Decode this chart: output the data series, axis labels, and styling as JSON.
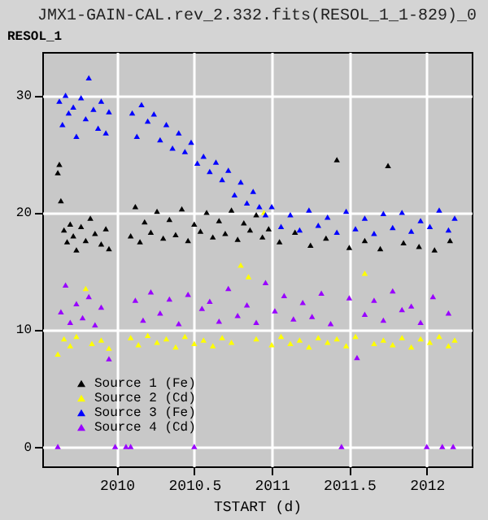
{
  "chart_data": {
    "type": "scatter",
    "title": "JMX1-GAIN-CAL.rev_2.332.fits(RESOL_1_1-829)_0",
    "xlabel": "TSTART (d)",
    "ylabel": "RESOL_1",
    "xlim": [
      2009.52,
      2012.29
    ],
    "xticks": [
      2010,
      2010.5,
      2011,
      2011.5,
      2012
    ],
    "ylim": [
      -1.7,
      33.7
    ],
    "yticks": [
      0,
      10,
      20,
      30
    ],
    "grid": true,
    "legend": "bottom left",
    "marker": "triangle",
    "series": [
      {
        "name": "Source 1 (Fe)",
        "color": "#000000",
        "x": [
          2009.62,
          2009.63,
          2009.64,
          2009.66,
          2009.68,
          2009.7,
          2009.72,
          2009.74,
          2009.77,
          2009.8,
          2009.83,
          2009.86,
          2009.9,
          2009.93,
          2009.95,
          2010.09,
          2010.12,
          2010.15,
          2010.18,
          2010.22,
          2010.26,
          2010.3,
          2010.34,
          2010.38,
          2010.42,
          2010.46,
          2010.5,
          2010.54,
          2010.58,
          2010.62,
          2010.66,
          2010.7,
          2010.74,
          2010.78,
          2010.82,
          2010.86,
          2010.9,
          2010.94,
          2010.98,
          2011.05,
          2011.15,
          2011.25,
          2011.35,
          2011.42,
          2011.5,
          2011.6,
          2011.7,
          2011.75,
          2011.85,
          2011.95,
          2012.05,
          2012.15
        ],
        "values": [
          23.4,
          24.1,
          21,
          18.5,
          17.5,
          19,
          18,
          16.8,
          18.8,
          17.6,
          19.5,
          18.2,
          17.3,
          18.6,
          16.9,
          18,
          20.5,
          17.5,
          19.2,
          18.3,
          20.1,
          17.8,
          19.4,
          18.1,
          20.3,
          17.6,
          19,
          18.4,
          20,
          17.9,
          19.3,
          18.2,
          20.2,
          17.7,
          19.1,
          18.5,
          19.8,
          17.9,
          18.6,
          17.5,
          18.3,
          17.2,
          17.8,
          24.5,
          17,
          17.6,
          16.9,
          24,
          17.4,
          17.1,
          16.8,
          17.6
        ]
      },
      {
        "name": "Source 2 (Cd)",
        "color": "#ffff00",
        "x": [
          2009.62,
          2009.66,
          2009.7,
          2009.74,
          2009.8,
          2009.84,
          2009.9,
          2009.95,
          2010.09,
          2010.14,
          2010.2,
          2010.26,
          2010.32,
          2010.38,
          2010.44,
          2010.5,
          2010.56,
          2010.62,
          2010.68,
          2010.74,
          2010.8,
          2010.85,
          2010.9,
          2010.95,
          2011.0,
          2011.06,
          2011.12,
          2011.18,
          2011.24,
          2011.3,
          2011.36,
          2011.42,
          2011.48,
          2011.54,
          2011.6,
          2011.66,
          2011.72,
          2011.78,
          2011.84,
          2011.9,
          2011.96,
          2012.02,
          2012.08,
          2012.14,
          2012.18
        ],
        "values": [
          7.9,
          9.2,
          8.6,
          9.4,
          13.5,
          8.8,
          9.1,
          8.4,
          9.3,
          8.7,
          9.5,
          8.9,
          9.2,
          8.5,
          9.4,
          8.8,
          9.1,
          8.6,
          9.3,
          8.9,
          15.5,
          14.5,
          9.2,
          20,
          8.7,
          9.4,
          8.8,
          9.1,
          8.5,
          9.3,
          8.9,
          9.2,
          8.6,
          9.4,
          14.8,
          8.8,
          9.1,
          8.7,
          9.3,
          8.5,
          9.2,
          8.9,
          9.4,
          8.6,
          9.1
        ]
      },
      {
        "name": "Source 3 (Fe)",
        "color": "#0000ff",
        "x": [
          2009.63,
          2009.65,
          2009.67,
          2009.69,
          2009.72,
          2009.74,
          2009.77,
          2009.8,
          2009.82,
          2009.85,
          2009.88,
          2009.9,
          2009.93,
          2009.95,
          2010.1,
          2010.13,
          2010.16,
          2010.2,
          2010.24,
          2010.28,
          2010.32,
          2010.36,
          2010.4,
          2010.44,
          2010.48,
          2010.52,
          2010.56,
          2010.6,
          2010.64,
          2010.68,
          2010.72,
          2010.76,
          2010.8,
          2010.84,
          2010.88,
          2010.92,
          2010.96,
          2011.0,
          2011.06,
          2011.12,
          2011.18,
          2011.24,
          2011.3,
          2011.36,
          2011.42,
          2011.48,
          2011.54,
          2011.6,
          2011.66,
          2011.72,
          2011.78,
          2011.84,
          2011.9,
          2011.96,
          2012.02,
          2012.08,
          2012.14,
          2012.18
        ],
        "values": [
          29.5,
          27.5,
          30,
          28.5,
          29,
          26.5,
          29.8,
          28,
          31.5,
          28.8,
          27.2,
          29.5,
          26.8,
          28.6,
          28.5,
          26.5,
          29.2,
          27.8,
          28.4,
          26.2,
          27.5,
          25.5,
          26.8,
          25.2,
          26,
          24.2,
          24.8,
          23.5,
          24.3,
          22.8,
          23.6,
          21.5,
          22.6,
          20.8,
          21.8,
          20.5,
          19.8,
          20.5,
          18.8,
          19.8,
          18.5,
          20.2,
          18.9,
          19.6,
          18.3,
          20.1,
          18.6,
          19.5,
          18.2,
          19.9,
          18.7,
          20,
          18.4,
          19.3,
          18.8,
          20.2,
          18.5,
          19.5
        ]
      },
      {
        "name": "Source 4 (Cd)",
        "color": "#9900ff",
        "x": [
          2009.62,
          2009.64,
          2009.67,
          2009.7,
          2009.74,
          2009.78,
          2009.82,
          2009.86,
          2009.9,
          2009.95,
          2009.99,
          2010.06,
          2010.09,
          2010.12,
          2010.17,
          2010.22,
          2010.28,
          2010.34,
          2010.4,
          2010.46,
          2010.5,
          2010.55,
          2010.6,
          2010.66,
          2010.72,
          2010.78,
          2010.84,
          2010.9,
          2010.96,
          2011.02,
          2011.08,
          2011.14,
          2011.2,
          2011.26,
          2011.32,
          2011.38,
          2011.45,
          2011.5,
          2011.55,
          2011.6,
          2011.66,
          2011.72,
          2011.78,
          2011.84,
          2011.9,
          2011.96,
          2012.0,
          2012.04,
          2012.1,
          2012.14,
          2012.17
        ],
        "values": [
          0,
          11.5,
          13.8,
          10.6,
          12.2,
          11,
          12.8,
          10.4,
          11.9,
          7.5,
          0,
          0,
          0,
          12.5,
          10.8,
          13.2,
          11.4,
          12.6,
          10.5,
          13,
          0,
          11.8,
          12.4,
          10.7,
          13.5,
          11.2,
          12.1,
          10.6,
          14,
          11.6,
          12.9,
          10.9,
          12.3,
          11.1,
          13.1,
          10.5,
          0,
          12.7,
          7.6,
          11.3,
          12.5,
          10.8,
          13.3,
          11.7,
          12,
          10.6,
          0,
          12.8,
          0,
          11.4,
          0
        ]
      }
    ]
  }
}
